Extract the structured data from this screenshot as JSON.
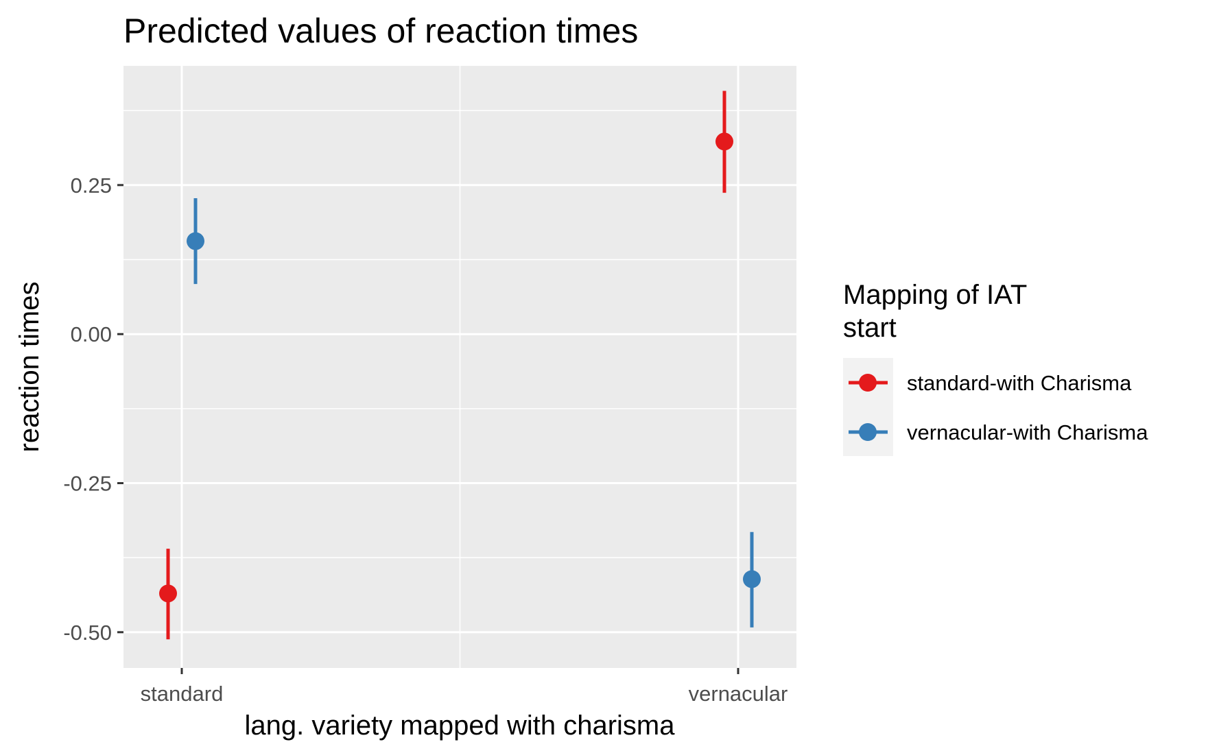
{
  "chart_data": {
    "type": "scatter",
    "subtype": "pointrange",
    "title": "Predicted values of reaction times",
    "xlabel": "lang. variety mapped with charisma",
    "ylabel": "reaction times",
    "categories": [
      "standard",
      "vernacular"
    ],
    "y_ticks": [
      {
        "value": 0.25,
        "label": "0.25"
      },
      {
        "value": 0.0,
        "label": "0.00"
      },
      {
        "value": -0.25,
        "label": "-0.25"
      },
      {
        "value": -0.5,
        "label": "-0.50"
      }
    ],
    "ylim": [
      -0.56,
      0.45
    ],
    "grid": true,
    "legend": {
      "title_lines": [
        "Mapping of IAT",
        "start"
      ],
      "placement": "right"
    },
    "series": [
      {
        "name": "standard-with Charisma",
        "color": "#e41a1c",
        "points": [
          {
            "x": "standard",
            "y": -0.435,
            "ymin": -0.512,
            "ymax": -0.36
          },
          {
            "x": "vernacular",
            "y": 0.323,
            "ymin": 0.237,
            "ymax": 0.408
          }
        ]
      },
      {
        "name": "vernacular-with Charisma",
        "color": "#377eb8",
        "points": [
          {
            "x": "standard",
            "y": 0.156,
            "ymin": 0.084,
            "ymax": 0.228
          },
          {
            "x": "vernacular",
            "y": -0.411,
            "ymin": -0.492,
            "ymax": -0.332
          }
        ]
      }
    ]
  }
}
